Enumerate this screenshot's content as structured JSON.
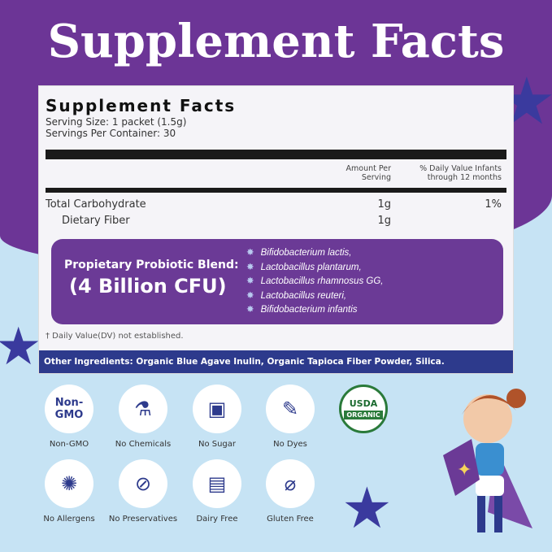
{
  "heading": "Supplement Facts",
  "panel": {
    "title": "Supplement Facts",
    "serving_size": "Serving Size: 1 packet (1.5g)",
    "servings_per_container": "Servings Per Container: 30",
    "col_amount": "Amount Per Serving",
    "col_dv": "% Daily Value Infants through 12 months",
    "rows": [
      {
        "name": "Total Carbohydrate",
        "amount": "1g",
        "dv": "1%"
      },
      {
        "name": "Dietary Fiber",
        "amount": "1g",
        "dv": ""
      }
    ],
    "blend_label": "Propietary Probiotic Blend:",
    "blend_cfu": "(4 Billion CFU)",
    "strains": [
      "Bifidobacterium lactis,",
      "Lactobacillus plantarum,",
      "Lactobacillus rhamnosus GG,",
      "Lactobacillus reuteri,",
      "Bifidobacterium infantis"
    ],
    "footnote": "† Daily Value(DV) not established.",
    "other": "Other Ingredients: Organic Blue Agave Inulin, Organic Tapioca Fiber Powder, Silica."
  },
  "badges": [
    {
      "label": "Non-GMO",
      "glyph": "Non-\nGMO",
      "icon": "non-gmo-icon"
    },
    {
      "label": "No Chemicals",
      "glyph": "⚗",
      "icon": "flask-icon"
    },
    {
      "label": "No Sugar",
      "glyph": "▣",
      "icon": "sugar-cubes-icon"
    },
    {
      "label": "No Dyes",
      "glyph": "✎",
      "icon": "dropper-icon"
    },
    {
      "label": "No Allergens",
      "glyph": "✺",
      "icon": "allergen-icon"
    },
    {
      "label": "No Preservatives",
      "glyph": "⊘",
      "icon": "test-tube-icon"
    },
    {
      "label": "Dairy Free",
      "glyph": "▤",
      "icon": "milk-carton-icon"
    },
    {
      "label": "Gluten Free",
      "glyph": "⌀",
      "icon": "wheat-icon"
    }
  ],
  "usda": {
    "top": "USDA",
    "bottom": "ORGANIC"
  },
  "colors": {
    "purple": "#6c3596",
    "navy": "#2d3a8c",
    "light_blue": "#c6e3f4"
  }
}
